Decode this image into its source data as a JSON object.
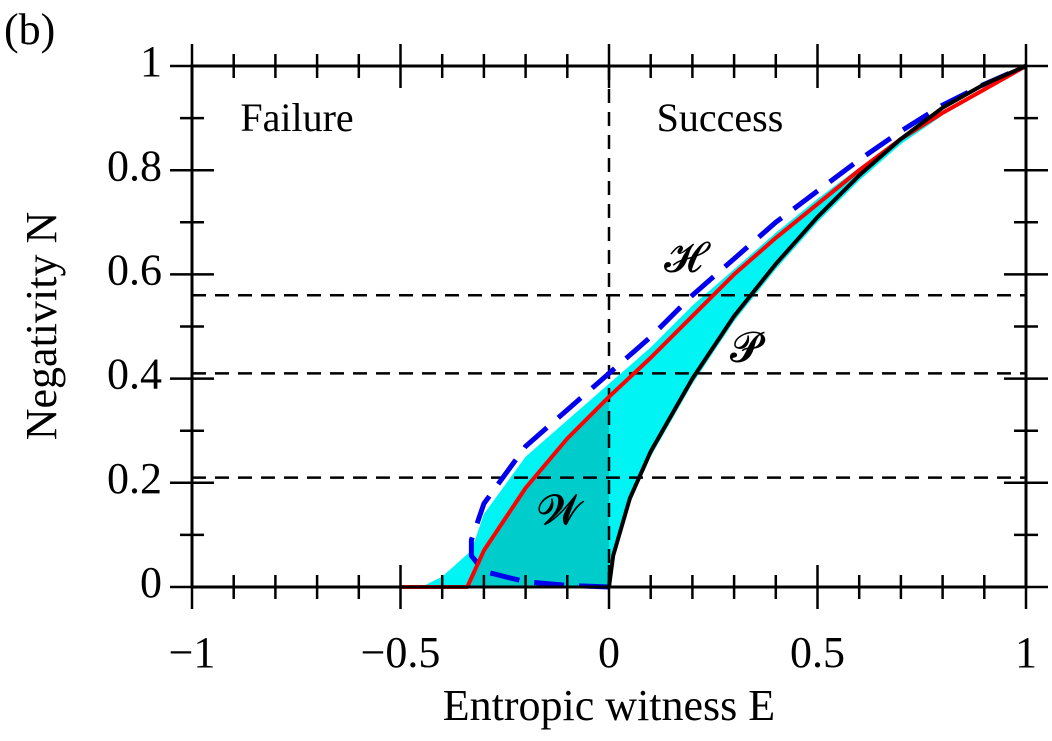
{
  "chart_data": {
    "type": "line",
    "title": "(b)",
    "xlabel": "Entropic witness E",
    "ylabel": "Negativity N",
    "xlim": [
      -1,
      1
    ],
    "ylim": [
      0,
      1
    ],
    "xticks": [
      {
        "value": -1,
        "label": "−1"
      },
      {
        "value": -0.5,
        "label": "−0.5"
      },
      0,
      0.5,
      1
    ],
    "yticks": [
      0,
      0.2,
      0.4,
      0.6,
      0.8,
      1
    ],
    "xminor": [
      -0.9,
      -0.8,
      -0.7,
      -0.6,
      -0.4,
      -0.3,
      -0.2,
      -0.1,
      0.1,
      0.2,
      0.3,
      0.4,
      0.6,
      0.7,
      0.8,
      0.9
    ],
    "yminor": [
      0.1,
      0.3,
      0.5,
      0.7,
      0.9
    ],
    "areas": [
      {
        "color": "#00f4f4",
        "x": [
          -0.45,
          -0.4,
          -0.33,
          -0.3,
          -0.2,
          -0.1,
          0,
          0.1,
          0.2,
          0.3,
          0.4,
          0.5,
          0.6,
          0.7,
          0.8,
          0.85,
          0.8,
          0.7,
          0.6,
          0.5,
          0.4,
          0.3,
          0.2,
          0.1,
          0.05,
          0.01,
          0
        ],
        "values": [
          0,
          0.02,
          0.07,
          0.14,
          0.25,
          0.32,
          0.39,
          0.46,
          0.54,
          0.61,
          0.68,
          0.745,
          0.805,
          0.86,
          0.905,
          0.925,
          0.905,
          0.85,
          0.78,
          0.7,
          0.61,
          0.51,
          0.39,
          0.25,
          0.16,
          0.06,
          0
        ]
      },
      {
        "color": "#00cccc",
        "x": [
          -0.34,
          -0.3,
          -0.2,
          -0.1,
          0,
          0
        ],
        "values": [
          0,
          0.07,
          0.19,
          0.285,
          0.365,
          0
        ]
      }
    ],
    "series": [
      {
        "color": "#0000ee",
        "dashed": true,
        "x": [
          0,
          -0.1,
          -0.2,
          -0.3,
          -0.33,
          -0.33,
          -0.3,
          -0.2,
          -0.1,
          0,
          0.1,
          0.2,
          0.3,
          0.4,
          0.5,
          0.6,
          0.7,
          0.8,
          0.9,
          1
        ],
        "values": [
          0,
          0.003,
          0.01,
          0.03,
          0.06,
          0.09,
          0.16,
          0.27,
          0.34,
          0.41,
          0.48,
          0.56,
          0.63,
          0.7,
          0.76,
          0.82,
          0.875,
          0.925,
          0.965,
          1
        ]
      },
      {
        "color": "#ff0000",
        "dashed": false,
        "x": [
          -0.5,
          -0.34,
          -0.3,
          -0.2,
          -0.1,
          0,
          0.1,
          0.2,
          0.3,
          0.4,
          0.5,
          0.6,
          0.7,
          0.8,
          0.9,
          1
        ],
        "values": [
          0,
          0,
          0.07,
          0.19,
          0.285,
          0.365,
          0.44,
          0.52,
          0.6,
          0.67,
          0.735,
          0.8,
          0.86,
          0.91,
          0.955,
          1
        ]
      },
      {
        "color": "#000000",
        "dashed": false,
        "x": [
          0,
          0.01,
          0.05,
          0.1,
          0.2,
          0.3,
          0.4,
          0.5,
          0.6,
          0.7,
          0.8,
          0.9,
          1
        ],
        "values": [
          0,
          0.06,
          0.17,
          0.26,
          0.4,
          0.52,
          0.62,
          0.71,
          0.79,
          0.86,
          0.92,
          0.965,
          1
        ]
      }
    ],
    "hlines": [
      0.56,
      0.41,
      0.21
    ],
    "vlines": [
      0
    ],
    "annotations": [
      "Failure",
      "Success",
      "𝓗",
      "𝓟",
      "𝓦"
    ]
  }
}
